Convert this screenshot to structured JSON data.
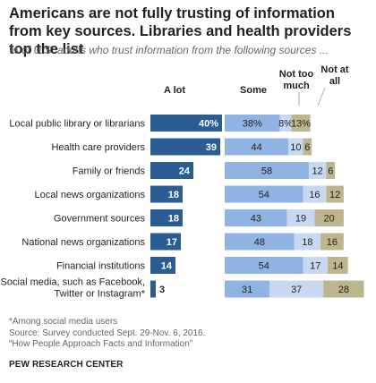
{
  "title": "Americans are not fully trusting of information from key sources. Libraries and health providers top the list",
  "subtitle": "% of U.S. adults who trust information from the following sources ...",
  "colors": {
    "a_lot": "#2b5d94",
    "some": "#8fb4e3",
    "not_too_much": "#c6d9f1",
    "not_at_all": "#bdb58e"
  },
  "chart_data": {
    "type": "bar",
    "categories": [
      "Local public library or librarians",
      "Health care providers",
      "Family or friends",
      "Local news organizations",
      "Government sources",
      "National news organizations",
      "Financial institutions",
      "Social media, such as Facebook, Twitter or Instagram*"
    ],
    "series": [
      {
        "name": "A lot",
        "values": [
          40,
          39,
          24,
          18,
          18,
          17,
          14,
          3
        ],
        "labels": [
          "40%",
          "39",
          "24",
          "18",
          "18",
          "17",
          "14",
          "3"
        ]
      },
      {
        "name": "Some",
        "values": [
          38,
          44,
          58,
          54,
          43,
          48,
          54,
          31
        ],
        "labels": [
          "38%",
          "44",
          "58",
          "54",
          "43",
          "48",
          "54",
          "31"
        ]
      },
      {
        "name": "Not too much",
        "values": [
          8,
          10,
          12,
          16,
          19,
          18,
          17,
          37
        ],
        "labels": [
          "8%",
          "10",
          "12",
          "16",
          "19",
          "18",
          "17",
          "37"
        ]
      },
      {
        "name": "Not at all",
        "values": [
          13,
          6,
          6,
          12,
          20,
          16,
          14,
          28
        ],
        "labels": [
          "13%",
          "6",
          "6",
          "12",
          "20",
          "16",
          "14",
          "28"
        ]
      }
    ]
  },
  "footer": {
    "note": "*Among social media users",
    "source": "Source:  Survey conducted Sept. 29-Nov. 6, 2016.",
    "report": "“How People Approach Facts and Information”",
    "credit": "PEW RESEARCH CENTER"
  }
}
